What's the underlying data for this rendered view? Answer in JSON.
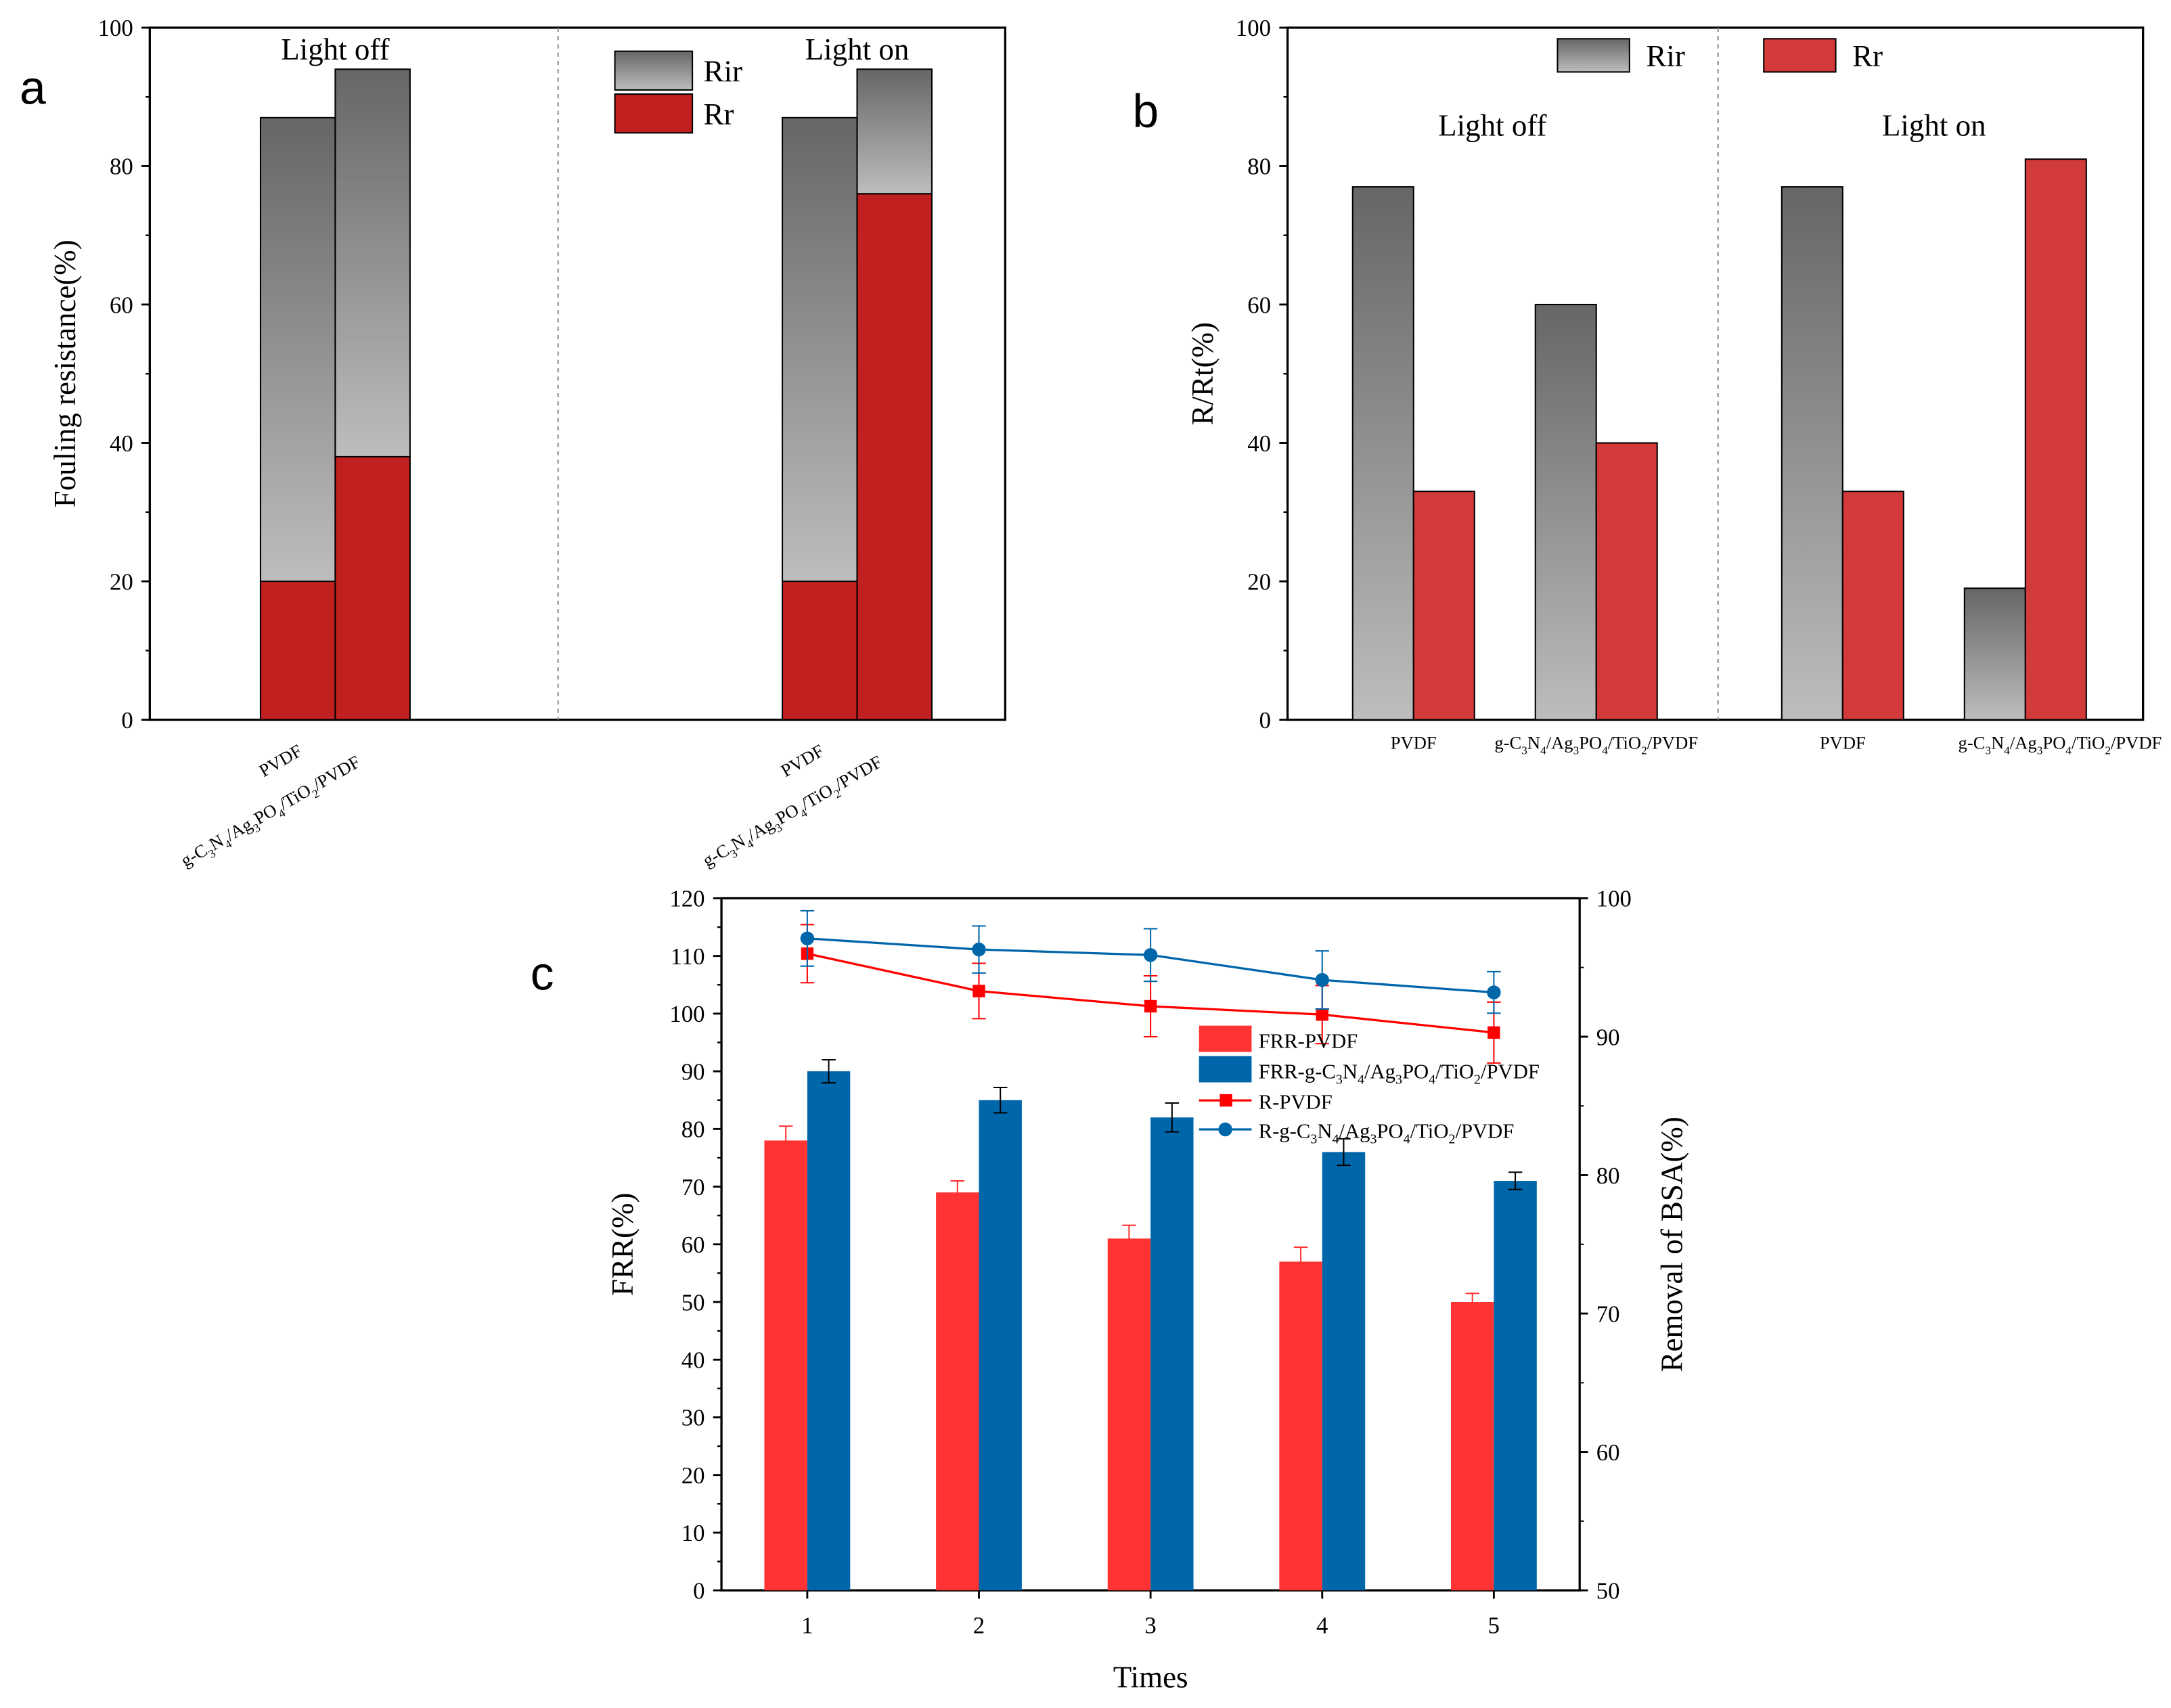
{
  "chart_data": [
    {
      "panel": "a",
      "type": "bar",
      "stacked": true,
      "ylabel": "Fouling resistance(%)",
      "ylim": [
        0,
        100
      ],
      "yticks": [
        0,
        20,
        40,
        60,
        80,
        100
      ],
      "groups": [
        {
          "title": "Light off",
          "categories": [
            "PVDF",
            "g-C3N4/Ag3PO4/TiO2/PVDF"
          ],
          "Rr": [
            20,
            38
          ],
          "Rir": [
            67,
            56
          ]
        },
        {
          "title": "Light on",
          "categories": [
            "PVDF",
            "g-C3N4/Ag3PO4/TiO2/PVDF"
          ],
          "Rr": [
            20,
            76
          ],
          "Rir": [
            67,
            18
          ]
        }
      ],
      "legend": [
        {
          "name": "Rir",
          "color": "#7a7a7a"
        },
        {
          "name": "Rr",
          "color": "#c0201f"
        }
      ],
      "legend_position": "top-center"
    },
    {
      "panel": "b",
      "type": "bar",
      "stacked": false,
      "ylabel": "R/Rt(%)",
      "ylim": [
        0,
        100
      ],
      "yticks": [
        0,
        20,
        40,
        60,
        80,
        100
      ],
      "groups": [
        {
          "title": "Light off",
          "categories": [
            "PVDF",
            "g-C3N4/Ag3PO4/TiO2/PVDF"
          ],
          "Rir": [
            77,
            60
          ],
          "Rr": [
            33,
            40
          ]
        },
        {
          "title": "Light on",
          "categories": [
            "PVDF",
            "g-C3N4/Ag3PO4/TiO2/PVDF"
          ],
          "Rir": [
            77,
            19
          ],
          "Rr": [
            33,
            81
          ]
        }
      ],
      "legend": [
        {
          "name": "Rir",
          "color": "#7a7a7a"
        },
        {
          "name": "Rr",
          "color": "#d33a3a"
        }
      ],
      "legend_position": "top"
    },
    {
      "panel": "c",
      "type": "bar+line",
      "xlabel": "Times",
      "ylabel": "FRR(%)",
      "y2label": "Removal of BSA(%)",
      "categories": [
        "1",
        "2",
        "3",
        "4",
        "5"
      ],
      "ylim": [
        0,
        120
      ],
      "yticks": [
        0,
        10,
        20,
        30,
        40,
        50,
        60,
        70,
        80,
        90,
        100,
        110,
        120
      ],
      "y2lim": [
        50,
        100
      ],
      "y2ticks": [
        50,
        60,
        70,
        80,
        90,
        100
      ],
      "bars": [
        {
          "name": "FRR-PVDF",
          "color": "#ff3333",
          "values": [
            78,
            69,
            61,
            57,
            50
          ],
          "errors": [
            2.5,
            2,
            2.3,
            2.5,
            1.5
          ]
        },
        {
          "name": "FRR-g-C3N4/Ag3PO4/TiO2/PVDF",
          "color": "#0066aa",
          "values": [
            90,
            85,
            82,
            76,
            71
          ],
          "errors": [
            2,
            2.2,
            2.5,
            2.3,
            1.5
          ]
        }
      ],
      "lines": [
        {
          "name": "R-PVDF",
          "color": "#ff0000",
          "marker": "square",
          "values": [
            96.0,
            93.3,
            92.2,
            91.6,
            90.3
          ],
          "errors": [
            2.1,
            2.0,
            2.2,
            2.1,
            2.2
          ]
        },
        {
          "name": "R-g-C3N4/Ag3PO4/TiO2/PVDF",
          "color": "#0066aa",
          "marker": "circle",
          "values": [
            97.1,
            96.3,
            95.9,
            94.1,
            93.2
          ],
          "errors": [
            2.0,
            1.7,
            1.9,
            2.1,
            1.5
          ]
        }
      ],
      "legend_position": "center-right"
    }
  ]
}
